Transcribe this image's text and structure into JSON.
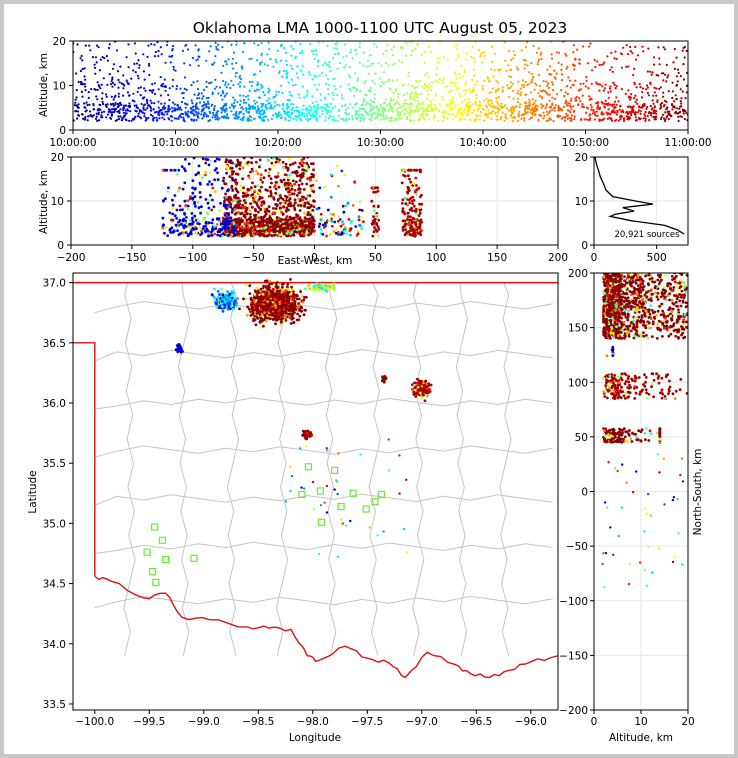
{
  "chart_data": [
    {
      "panel": "time-height",
      "type": "scatter",
      "title": "Oklahoma LMA 1000-1100 UTC August 05, 2023",
      "xlabel": "",
      "ylabel": "Altitude, km",
      "x_tick_labels": [
        "10:00:00",
        "10:10:00",
        "10:20:00",
        "10:30:00",
        "10:40:00",
        "10:50:00",
        "11:00:00"
      ],
      "xlim": [
        "10:00:00",
        "11:00:00"
      ],
      "ylim": [
        0,
        20
      ],
      "y_ticks": [
        0,
        10,
        20
      ],
      "color_encoding": "time (blue -> red, jet colormap)",
      "grid": false
    },
    {
      "panel": "east-west-height",
      "type": "scatter",
      "xlabel": "East-West, km",
      "ylabel": "Altitude, km",
      "xlim": [
        -200,
        200
      ],
      "x_ticks": [
        -200,
        -150,
        -100,
        -50,
        0,
        50,
        100,
        150,
        200
      ],
      "ylim": [
        0,
        20
      ],
      "y_ticks": [
        0,
        10,
        20
      ],
      "grid": true,
      "clusters": [
        {
          "x_range": [
            -75,
            0
          ],
          "y_range": [
            1,
            20
          ],
          "dominant_color": "#8b0000"
        },
        {
          "x_range": [
            -110,
            -65
          ],
          "y_range": [
            1,
            20
          ],
          "dominant_color": "#0000dd"
        },
        {
          "x_range": [
            -125,
            -110
          ],
          "y_range": [
            2,
            17
          ],
          "dominant_color": "#0000dd"
        },
        {
          "x_range": [
            72,
            88
          ],
          "y_range": [
            1,
            17
          ],
          "dominant_color": "#aa0000"
        },
        {
          "x_range": [
            47,
            53
          ],
          "y_range": [
            2,
            13
          ],
          "dominant_color": "#aa0000"
        },
        {
          "x_range": [
            0,
            42
          ],
          "y_range": [
            1,
            20
          ],
          "dominant_color": "mixed"
        }
      ]
    },
    {
      "panel": "altitude-histogram",
      "type": "line",
      "xlabel": "",
      "ylabel": "",
      "xlim": [
        0,
        750
      ],
      "x_ticks": [
        0,
        500
      ],
      "ylim": [
        0,
        20
      ],
      "y_ticks": [
        0,
        10,
        20
      ],
      "annotation": "20,921 sources",
      "profile": [
        {
          "alt": 2.5,
          "count": 720
        },
        {
          "alt": 3.5,
          "count": 660
        },
        {
          "alt": 4.5,
          "count": 560
        },
        {
          "alt": 5.5,
          "count": 300
        },
        {
          "alt": 6.5,
          "count": 130
        },
        {
          "alt": 7.0,
          "count": 170
        },
        {
          "alt": 7.7,
          "count": 320
        },
        {
          "alt": 8.5,
          "count": 230
        },
        {
          "alt": 9.3,
          "count": 470
        },
        {
          "alt": 10.0,
          "count": 330
        },
        {
          "alt": 11.0,
          "count": 150
        },
        {
          "alt": 12.5,
          "count": 95
        },
        {
          "alt": 14.0,
          "count": 75
        },
        {
          "alt": 15.5,
          "count": 50
        },
        {
          "alt": 17.0,
          "count": 35
        },
        {
          "alt": 18.5,
          "count": 18
        },
        {
          "alt": 20.0,
          "count": 8
        }
      ]
    },
    {
      "panel": "plan-view",
      "type": "scatter",
      "xlabel": "Longitude",
      "ylabel": "Latitude",
      "xlim": [
        -100.2,
        -95.75
      ],
      "x_ticks": [
        -100.0,
        -99.5,
        -99.0,
        -98.5,
        -98.0,
        -97.5,
        -97.0,
        -96.5,
        -96.0
      ],
      "x_tick_labels": [
        "-100.0",
        "-99.5",
        "-99.0",
        "-98.5",
        "-98.0",
        "-97.5",
        "-97.0",
        "-96.5",
        "-96.0"
      ],
      "ylim": [
        33.45,
        37.08
      ],
      "y_ticks": [
        33.5,
        34.0,
        34.5,
        35.0,
        35.5,
        36.0,
        36.5,
        37.0
      ],
      "y_tick_labels": [
        "33.5",
        "34.0",
        "34.5",
        "35.0",
        "35.5",
        "36.0",
        "36.5",
        "37.0"
      ],
      "stations": [
        {
          "lon": -99.45,
          "lat": 34.97
        },
        {
          "lon": -99.38,
          "lat": 34.86
        },
        {
          "lon": -99.52,
          "lat": 34.76
        },
        {
          "lon": -99.35,
          "lat": 34.7
        },
        {
          "lon": -99.09,
          "lat": 34.71
        },
        {
          "lon": -99.47,
          "lat": 34.6
        },
        {
          "lon": -99.44,
          "lat": 34.51
        },
        {
          "lon": -98.04,
          "lat": 35.47
        },
        {
          "lon": -97.8,
          "lat": 35.44
        },
        {
          "lon": -98.1,
          "lat": 35.24
        },
        {
          "lon": -97.93,
          "lat": 35.27
        },
        {
          "lon": -97.63,
          "lat": 35.25
        },
        {
          "lon": -97.37,
          "lat": 35.24
        },
        {
          "lon": -97.43,
          "lat": 35.18
        },
        {
          "lon": -97.74,
          "lat": 35.14
        },
        {
          "lon": -97.51,
          "lat": 35.12
        },
        {
          "lon": -97.92,
          "lat": 35.01
        }
      ],
      "station_color": "#66ee33"
    },
    {
      "panel": "north-south-height",
      "type": "scatter",
      "xlabel": "Altitude, km",
      "ylabel": "North-South, km",
      "xlim": [
        0,
        20
      ],
      "x_ticks": [
        0,
        10,
        20
      ],
      "ylim": [
        -200,
        200
      ],
      "y_ticks": [
        -200,
        -150,
        -100,
        -50,
        0,
        50,
        100,
        150,
        200
      ],
      "grid": true,
      "clusters": [
        {
          "y_range": [
            140,
            200
          ],
          "x_range": [
            1,
            20
          ],
          "dominant_color": "#8b0000"
        },
        {
          "y_range": [
            85,
            108
          ],
          "x_range": [
            1,
            20
          ],
          "dominant_color": "#aa0000"
        },
        {
          "y_range": [
            45,
            58
          ],
          "x_range": [
            1,
            14
          ],
          "dominant_color": "#8b0000"
        },
        {
          "y_range": [
            123,
            133
          ],
          "x_range": [
            2,
            4
          ],
          "dominant_color": "#0000dd"
        }
      ]
    }
  ]
}
